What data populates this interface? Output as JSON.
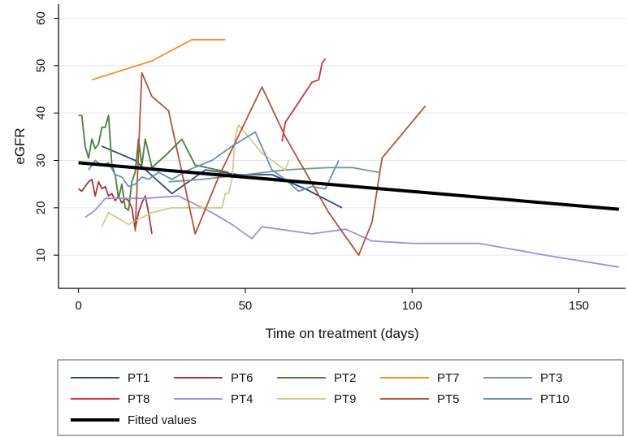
{
  "chart_data": {
    "type": "line",
    "title": "",
    "xlabel": "Time on treatment (days)",
    "ylabel": "eGFR",
    "xlim": [
      -6,
      164
    ],
    "ylim": [
      3,
      63
    ],
    "xticks": [
      0,
      50,
      100,
      150
    ],
    "yticks": [
      10,
      20,
      30,
      40,
      50,
      60
    ],
    "grid": "horizontal",
    "legend_position": "bottom",
    "series": [
      {
        "name": "PT1",
        "color": "#2f4b7c",
        "points": [
          [
            7,
            33
          ],
          [
            17,
            30
          ],
          [
            28,
            23
          ],
          [
            38,
            28
          ],
          [
            48,
            27
          ],
          [
            58,
            27
          ],
          [
            68,
            24
          ],
          [
            79,
            20
          ]
        ]
      },
      {
        "name": "PT6",
        "color": "#a3383a",
        "points": [
          [
            0,
            24
          ],
          [
            1,
            23.5
          ],
          [
            3,
            25.5
          ],
          [
            4,
            26
          ],
          [
            5,
            22.5
          ],
          [
            6,
            25.5
          ],
          [
            7,
            24
          ],
          [
            8,
            24.5
          ],
          [
            9,
            22.5
          ],
          [
            10,
            23
          ],
          [
            11,
            21.5
          ],
          [
            12,
            22.5
          ],
          [
            13,
            21
          ],
          [
            14,
            22
          ],
          [
            15,
            21.5
          ],
          [
            16,
            20
          ],
          [
            17,
            15.5
          ],
          [
            18,
            19
          ],
          [
            19,
            21
          ],
          [
            20,
            22.5
          ],
          [
            21,
            19
          ],
          [
            22,
            14.5
          ]
        ]
      },
      {
        "name": "PT2",
        "color": "#4a7f3d",
        "points": [
          [
            0,
            39.5
          ],
          [
            1,
            39.5
          ],
          [
            2,
            33
          ],
          [
            3,
            30.5
          ],
          [
            4,
            34.5
          ],
          [
            5,
            32.5
          ],
          [
            6,
            33.5
          ],
          [
            7,
            37
          ],
          [
            8,
            37
          ],
          [
            9,
            39.5
          ],
          [
            10,
            29
          ],
          [
            11,
            27
          ],
          [
            12,
            22
          ],
          [
            13,
            25
          ],
          [
            14,
            20
          ],
          [
            15,
            19.5
          ],
          [
            16,
            25.5
          ],
          [
            17,
            27.5
          ],
          [
            18,
            34.5
          ],
          [
            19,
            29
          ],
          [
            20,
            34.5
          ],
          [
            22,
            28.5
          ],
          [
            26,
            31
          ],
          [
            31,
            34.5
          ],
          [
            35,
            29
          ],
          [
            45,
            27.5
          ]
        ]
      },
      {
        "name": "PT7",
        "color": "#f4902a",
        "points": [
          [
            4,
            47
          ],
          [
            22,
            51
          ],
          [
            34,
            55.5
          ],
          [
            44,
            55.5
          ]
        ]
      },
      {
        "name": "PT3",
        "color": "#7a9a8e",
        "points": [
          [
            27,
            25.5
          ],
          [
            37,
            26
          ],
          [
            50,
            27
          ],
          [
            62,
            28
          ],
          [
            75,
            28.5
          ],
          [
            82,
            28.5
          ],
          [
            90,
            27.5
          ]
        ]
      },
      {
        "name": "PT8",
        "color": "#d83144",
        "points": [
          [
            61,
            34
          ],
          [
            62,
            38
          ],
          [
            70,
            46.5
          ],
          [
            72,
            47
          ],
          [
            73,
            50.5
          ],
          [
            74,
            51.5
          ]
        ]
      },
      {
        "name": "PT4",
        "color": "#9d8fe0",
        "points": [
          [
            2,
            18
          ],
          [
            5,
            19.5
          ],
          [
            8,
            22
          ],
          [
            14,
            22
          ],
          [
            20,
            22
          ],
          [
            30,
            22.5
          ],
          [
            40,
            19
          ],
          [
            46,
            16.5
          ],
          [
            52,
            13.5
          ],
          [
            55,
            16
          ],
          [
            70,
            14.5
          ],
          [
            80,
            15.5
          ],
          [
            88,
            13
          ],
          [
            100,
            12.5
          ],
          [
            120,
            12.5
          ],
          [
            140,
            10
          ],
          [
            162,
            7.5
          ]
        ]
      },
      {
        "name": "PT9",
        "color": "#d4c98a",
        "points": [
          [
            7,
            16
          ],
          [
            9,
            19
          ],
          [
            15,
            16.5
          ],
          [
            22,
            19
          ],
          [
            28,
            20
          ],
          [
            40,
            20
          ],
          [
            43,
            20
          ],
          [
            44,
            23
          ],
          [
            45,
            23
          ],
          [
            46,
            26
          ],
          [
            47,
            35
          ],
          [
            48,
            37.5
          ],
          [
            55,
            31.5
          ],
          [
            62,
            28
          ],
          [
            63,
            30
          ]
        ]
      },
      {
        "name": "PT5",
        "color": "#b0553a",
        "points": [
          [
            17,
            15
          ],
          [
            19,
            48.5
          ],
          [
            22,
            43.5
          ],
          [
            27,
            40.5
          ],
          [
            35,
            14.5
          ],
          [
            42,
            26.5
          ],
          [
            55,
            45.5
          ],
          [
            62,
            35
          ],
          [
            75,
            19
          ],
          [
            84,
            10
          ],
          [
            88,
            17
          ],
          [
            91,
            30.5
          ],
          [
            104,
            41.5
          ]
        ]
      },
      {
        "name": "PT10",
        "color": "#6b8fb8",
        "points": [
          [
            3,
            28
          ],
          [
            5,
            30
          ],
          [
            7,
            29
          ],
          [
            9,
            29.5
          ],
          [
            11,
            27
          ],
          [
            13,
            26.5
          ],
          [
            15,
            24.5
          ],
          [
            17,
            25
          ],
          [
            19,
            26.5
          ],
          [
            21,
            26
          ],
          [
            24,
            27.5
          ],
          [
            28,
            26
          ],
          [
            33,
            28
          ],
          [
            40,
            30
          ],
          [
            46,
            33
          ],
          [
            53,
            36
          ],
          [
            58,
            28
          ],
          [
            62,
            26
          ],
          [
            66,
            23.5
          ],
          [
            70,
            24.5
          ],
          [
            74,
            24
          ],
          [
            78,
            30
          ]
        ]
      }
    ],
    "fitted": {
      "name": "Fitted values",
      "color": "#000000",
      "points": [
        [
          0,
          29.5
        ],
        [
          162,
          19.7
        ]
      ]
    },
    "legend_order": [
      "PT1",
      "PT6",
      "PT2",
      "PT7",
      "PT3",
      "PT8",
      "PT4",
      "PT9",
      "PT5",
      "PT10",
      "Fitted values"
    ]
  }
}
